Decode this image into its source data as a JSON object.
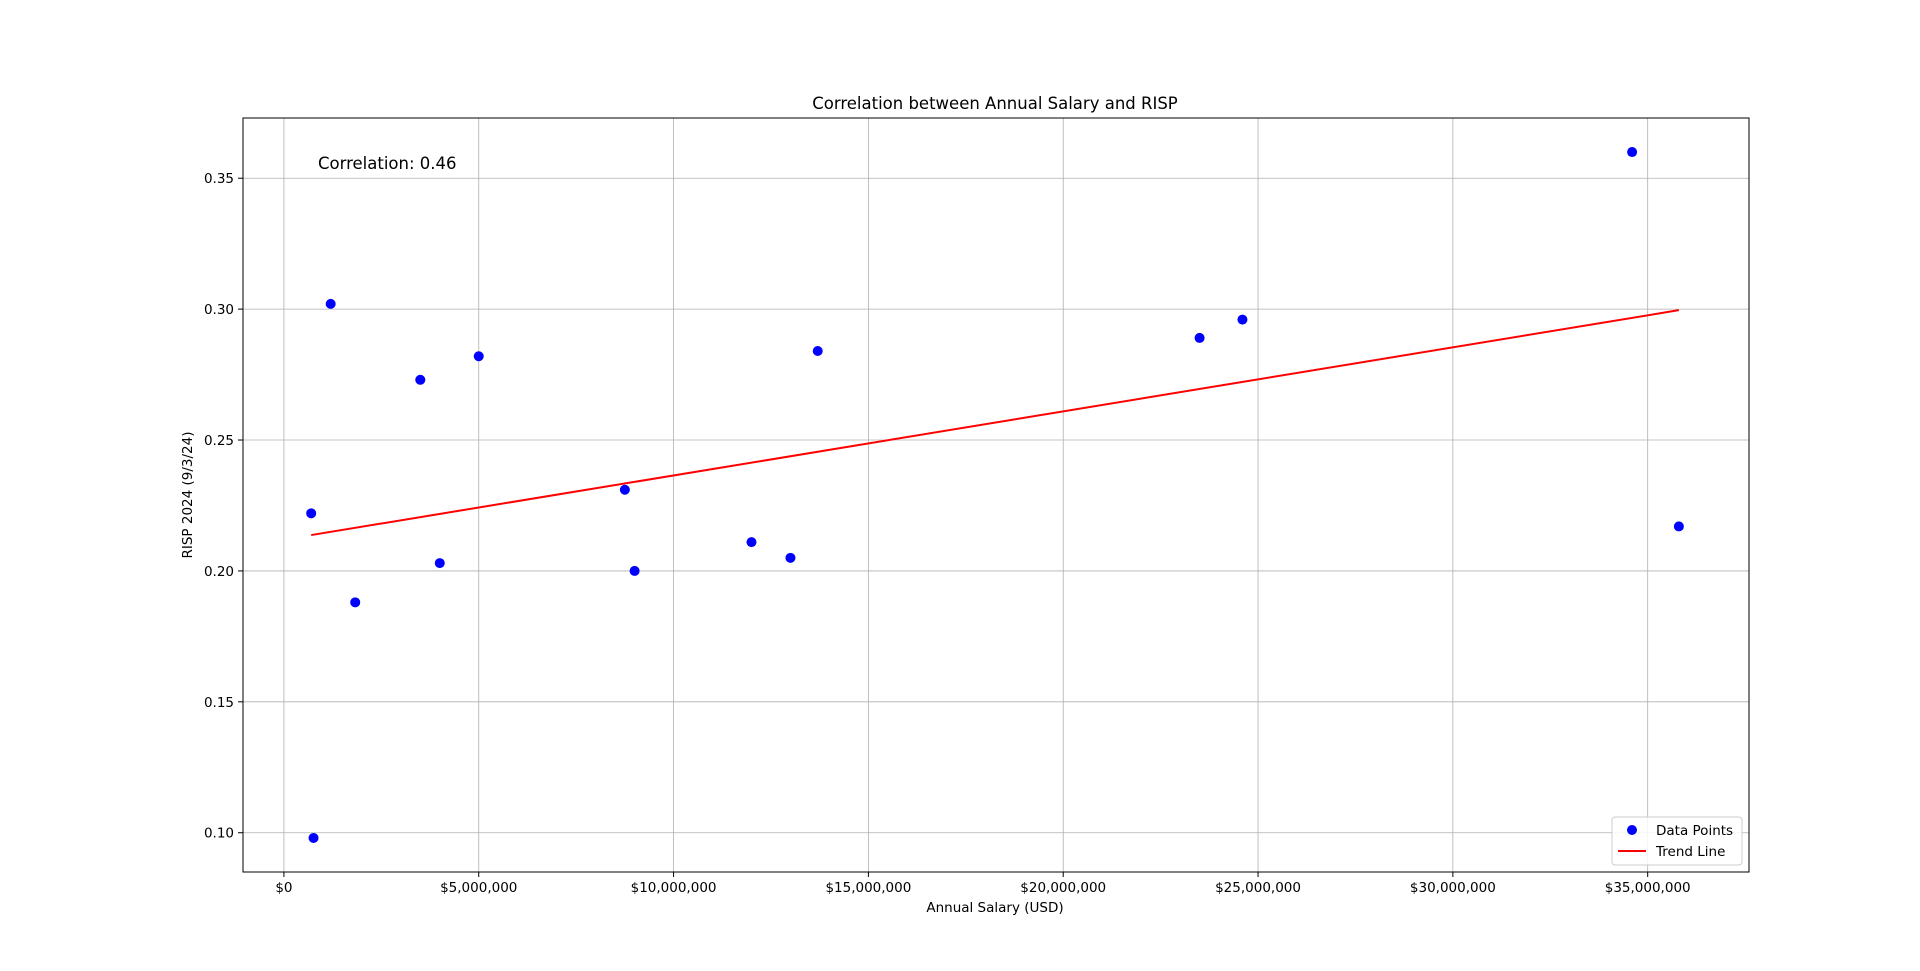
{
  "chart_data": {
    "type": "scatter",
    "title": "Correlation between Annual Salary and RISP",
    "xlabel": "Annual Salary (USD)",
    "ylabel": "RISP 2024 (9/3/24)",
    "annotation": "Correlation: 0.46",
    "xlim": [
      -1050000,
      37600000
    ],
    "ylim": [
      0.085,
      0.373
    ],
    "x_ticks": [
      {
        "value": 0,
        "label": "$0"
      },
      {
        "value": 5000000,
        "label": "$5,000,000"
      },
      {
        "value": 10000000,
        "label": "$10,000,000"
      },
      {
        "value": 15000000,
        "label": "$15,000,000"
      },
      {
        "value": 20000000,
        "label": "$20,000,000"
      },
      {
        "value": 25000000,
        "label": "$25,000,000"
      },
      {
        "value": 30000000,
        "label": "$30,000,000"
      },
      {
        "value": 35000000,
        "label": "$35,000,000"
      }
    ],
    "y_ticks": [
      {
        "value": 0.1,
        "label": "0.10"
      },
      {
        "value": 0.15,
        "label": "0.15"
      },
      {
        "value": 0.2,
        "label": "0.20"
      },
      {
        "value": 0.25,
        "label": "0.25"
      },
      {
        "value": 0.3,
        "label": "0.30"
      },
      {
        "value": 0.35,
        "label": "0.35"
      }
    ],
    "grid": true,
    "legend_position": "bottom-right",
    "series": [
      {
        "name": "Data Points",
        "kind": "scatter",
        "color": "#0000ff",
        "points": [
          {
            "x": 700000,
            "y": 0.222
          },
          {
            "x": 760000,
            "y": 0.098
          },
          {
            "x": 1200000,
            "y": 0.302
          },
          {
            "x": 1830000,
            "y": 0.188
          },
          {
            "x": 3500000,
            "y": 0.273
          },
          {
            "x": 4000000,
            "y": 0.203
          },
          {
            "x": 5000000,
            "y": 0.282
          },
          {
            "x": 8750000,
            "y": 0.231
          },
          {
            "x": 9000000,
            "y": 0.2
          },
          {
            "x": 12000000,
            "y": 0.211
          },
          {
            "x": 13000000,
            "y": 0.205
          },
          {
            "x": 13700000,
            "y": 0.284
          },
          {
            "x": 23500000,
            "y": 0.289
          },
          {
            "x": 24600000,
            "y": 0.296
          },
          {
            "x": 34600000,
            "y": 0.36
          },
          {
            "x": 35800000,
            "y": 0.217
          }
        ]
      },
      {
        "name": "Trend Line",
        "kind": "line",
        "color": "#ff0000",
        "points": [
          {
            "x": 700000,
            "y": 0.2137
          },
          {
            "x": 35800000,
            "y": 0.2996
          }
        ]
      }
    ]
  }
}
